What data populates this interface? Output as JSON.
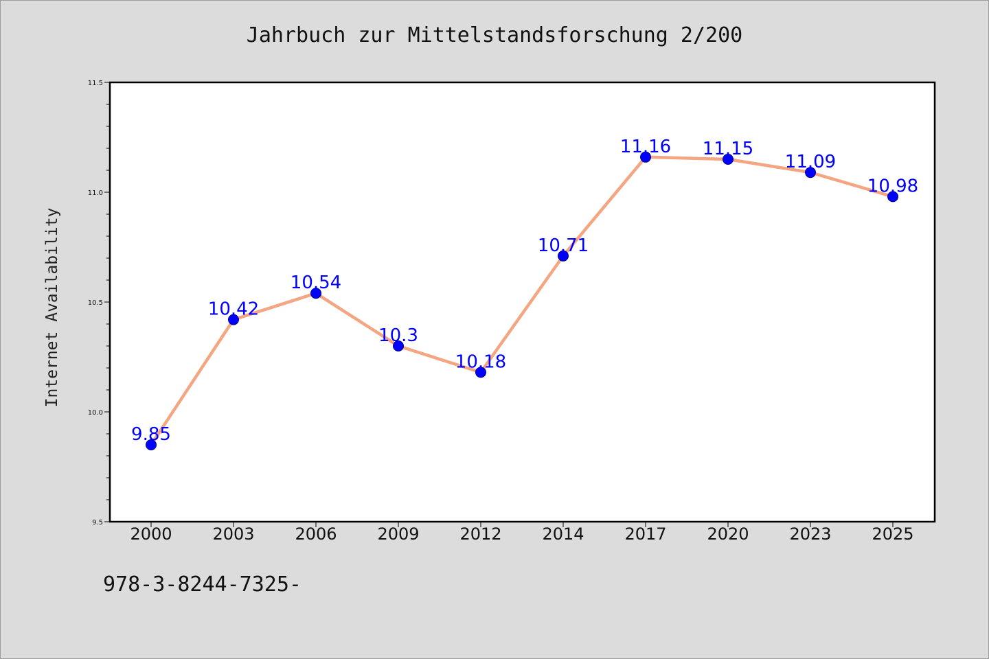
{
  "chart_data": {
    "type": "line",
    "title": "Jahrbuch zur Mittelstandsforschung 2/200",
    "xlabel": "",
    "ylabel": "Internet Availability",
    "categories": [
      "2000",
      "2003",
      "2006",
      "2009",
      "2012",
      "2014",
      "2017",
      "2020",
      "2023",
      "2025"
    ],
    "series": [
      {
        "values": [
          9.85,
          10.42,
          10.54,
          10.3,
          10.18,
          10.71,
          11.16,
          11.15,
          11.09,
          10.98
        ],
        "data_labels": [
          "9.85",
          "10.42",
          "10.54",
          "10.3",
          "10.18",
          "10.71",
          "11.16",
          "11.15",
          "11.09",
          "10.98"
        ],
        "line_color": "#f4a582",
        "marker_color": "#0000ff"
      }
    ],
    "ylim": [
      9.5,
      11.5
    ],
    "yticks": [
      "9.5",
      "10.0",
      "10.5",
      "11.0",
      "11.5"
    ],
    "grid": false,
    "legend": "none"
  },
  "footer": {
    "text": "978-3-8244-7325-"
  },
  "colors": {
    "background": "#dcdcdc",
    "plot_area": "#ffffff",
    "line": "#f4a582",
    "marker": "#0000ff",
    "label": "#0000ff"
  }
}
